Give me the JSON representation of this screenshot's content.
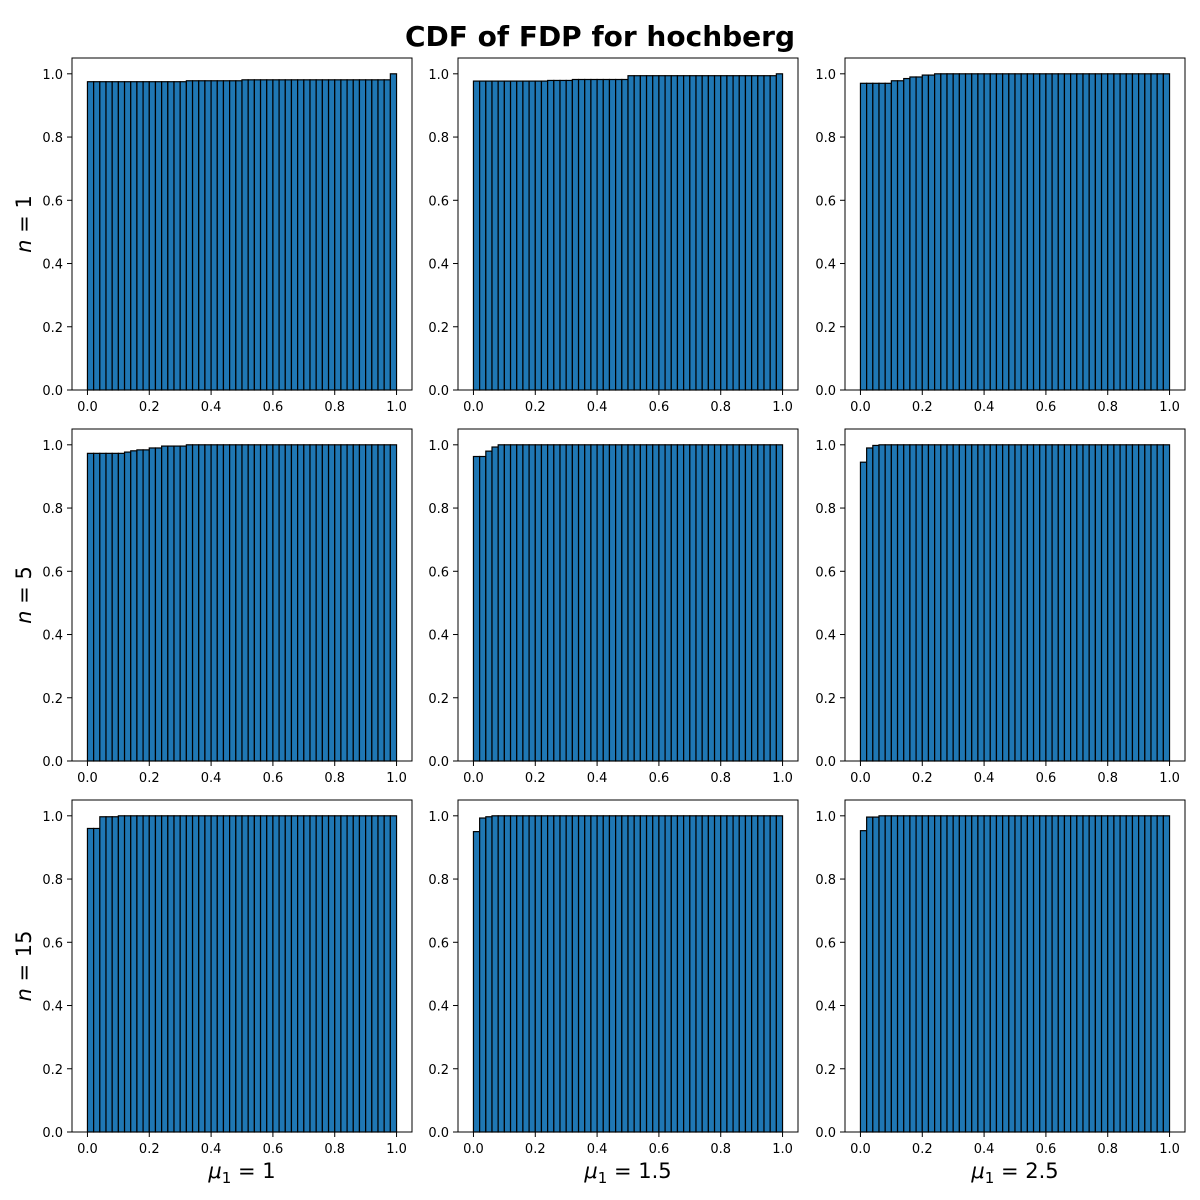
{
  "title": "CDF of FDP for hochberg",
  "colors": {
    "bar_fill": "#1f77b4",
    "bar_edge": "#000000",
    "background": "#ffffff"
  },
  "row_labels": [
    {
      "var": "n",
      "op": " = ",
      "value": "1"
    },
    {
      "var": "n",
      "op": " = ",
      "value": "5"
    },
    {
      "var": "n",
      "op": " = ",
      "value": "15"
    }
  ],
  "column_labels": [
    {
      "var": "μ",
      "sub": "1",
      "op": " = ",
      "value": "1"
    },
    {
      "var": "μ",
      "sub": "1",
      "op": " = ",
      "value": "1.5"
    },
    {
      "var": "μ",
      "sub": "1",
      "op": " = ",
      "value": "2.5"
    }
  ],
  "chart_data": {
    "type": "bar",
    "layout": "3x3 grid of cumulative histograms",
    "bins": 50,
    "bin_range": [
      0,
      1
    ],
    "xlim": [
      -0.05,
      1.05
    ],
    "ylim": [
      0,
      1.05
    ],
    "xticks": [
      "0.0",
      "0.2",
      "0.4",
      "0.6",
      "0.8",
      "1.0"
    ],
    "yticks": [
      "0.0",
      "0.2",
      "0.4",
      "0.6",
      "0.8",
      "1.0"
    ],
    "grid": false,
    "legend": "none",
    "panels": [
      {
        "row": "n = 1",
        "col": "μ1 = 1",
        "cdf_steps": [
          [
            0.0,
            0.975
          ],
          [
            0.32,
            0.978
          ],
          [
            0.5,
            0.981
          ],
          [
            0.98,
            1.0
          ]
        ]
      },
      {
        "row": "n = 1",
        "col": "μ1 = 1.5",
        "cdf_steps": [
          [
            0.0,
            0.977
          ],
          [
            0.24,
            0.979
          ],
          [
            0.32,
            0.982
          ],
          [
            0.5,
            0.994
          ],
          [
            0.98,
            1.0
          ]
        ]
      },
      {
        "row": "n = 1",
        "col": "μ1 = 2.5",
        "cdf_steps": [
          [
            0.0,
            0.97
          ],
          [
            0.1,
            0.978
          ],
          [
            0.14,
            0.985
          ],
          [
            0.16,
            0.99
          ],
          [
            0.2,
            0.996
          ],
          [
            0.24,
            1.0
          ]
        ]
      },
      {
        "row": "n = 5",
        "col": "μ1 = 1",
        "cdf_steps": [
          [
            0.0,
            0.973
          ],
          [
            0.12,
            0.977
          ],
          [
            0.14,
            0.981
          ],
          [
            0.16,
            0.984
          ],
          [
            0.2,
            0.99
          ],
          [
            0.24,
            0.996
          ],
          [
            0.32,
            1.0
          ]
        ]
      },
      {
        "row": "n = 5",
        "col": "μ1 = 1.5",
        "cdf_steps": [
          [
            0.0,
            0.963
          ],
          [
            0.04,
            0.98
          ],
          [
            0.06,
            0.993
          ],
          [
            0.08,
            1.0
          ]
        ]
      },
      {
        "row": "n = 5",
        "col": "μ1 = 2.5",
        "cdf_steps": [
          [
            0.0,
            0.945
          ],
          [
            0.02,
            0.99
          ],
          [
            0.04,
            0.998
          ],
          [
            0.06,
            1.0
          ]
        ]
      },
      {
        "row": "n = 15",
        "col": "μ1 = 1",
        "cdf_steps": [
          [
            0.0,
            0.96
          ],
          [
            0.04,
            0.997
          ],
          [
            0.1,
            1.0
          ]
        ]
      },
      {
        "row": "n = 15",
        "col": "μ1 = 1.5",
        "cdf_steps": [
          [
            0.0,
            0.95
          ],
          [
            0.02,
            0.993
          ],
          [
            0.04,
            0.997
          ],
          [
            0.06,
            1.0
          ]
        ]
      },
      {
        "row": "n = 15",
        "col": "μ1 = 2.5",
        "cdf_steps": [
          [
            0.0,
            0.953
          ],
          [
            0.02,
            0.996
          ],
          [
            0.06,
            1.0
          ]
        ]
      }
    ]
  }
}
